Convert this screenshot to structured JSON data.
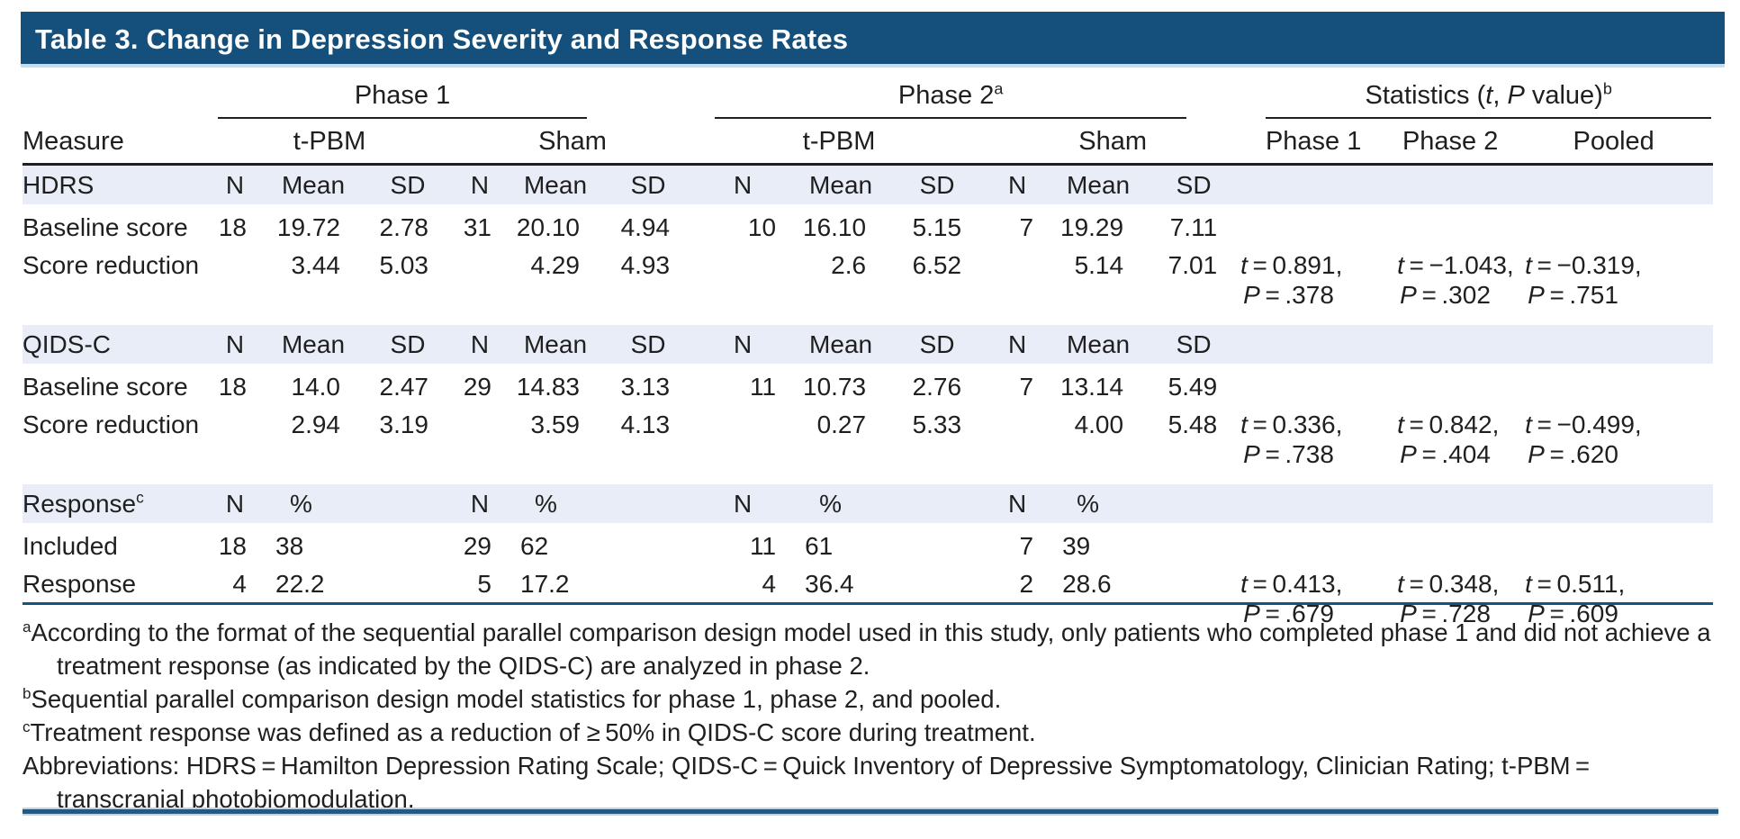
{
  "title": "Table 3. Change in Depression Severity and Response Rates",
  "colors": {
    "title_bar_bg": "#15507C",
    "title_text": "#FFFFFF",
    "band_bg": "#E9EDF8",
    "rule_dark": "#231F20",
    "rule_blue": "#17537F",
    "footer_rule_blue": "#1B5C8B",
    "text": "#1F1F1F"
  },
  "header": {
    "measure_label": "Measure",
    "groups": [
      {
        "parts": [
          {
            "t": "Phase 1"
          }
        ]
      },
      {
        "parts": [
          {
            "t": "Phase 2"
          },
          {
            "t": "a",
            "sup": true
          }
        ]
      },
      {
        "parts": [
          {
            "t": "Statistics ("
          },
          {
            "t": "t",
            "i": true
          },
          {
            "t": ", "
          },
          {
            "t": "P",
            "i": true
          },
          {
            "t": " value)"
          },
          {
            "t": "b",
            "sup": true
          }
        ]
      }
    ],
    "subgroups": [
      "t-PBM",
      "Sham",
      "t-PBM",
      "Sham"
    ],
    "stat_cols": [
      "Phase 1",
      "Phase 2",
      "Pooled"
    ]
  },
  "sections": [
    {
      "label_parts": [
        {
          "t": "HDRS"
        }
      ],
      "band_cols": [
        "N",
        "Mean",
        "SD",
        "N",
        "Mean",
        "SD",
        "N",
        "Mean",
        "SD",
        "N",
        "Mean",
        "SD"
      ],
      "pct": false,
      "rows": [
        {
          "label": "Baseline score",
          "cells": [
            "18",
            "19.72",
            "2.78",
            "31",
            "20.10",
            "4.94",
            "10",
            "16.10",
            "5.15",
            "7",
            "19.29",
            "7.11"
          ],
          "stats": [
            null,
            null,
            null
          ]
        },
        {
          "label": "Score reduction",
          "cells": [
            "",
            "3.44",
            "5.03",
            "",
            "4.29",
            "4.93",
            "",
            "2.6",
            "6.52",
            "",
            "5.14",
            "7.01"
          ],
          "stats": [
            {
              "t_line": "t = 0.891,",
              "p_line": "P = .378"
            },
            {
              "t_line": "t = −1.043,",
              "p_line": "P = .302"
            },
            {
              "t_line": "t = −0.319,",
              "p_line": "P = .751"
            }
          ]
        }
      ]
    },
    {
      "label_parts": [
        {
          "t": "QIDS-C"
        }
      ],
      "band_cols": [
        "N",
        "Mean",
        "SD",
        "N",
        "Mean",
        "SD",
        "N",
        "Mean",
        "SD",
        "N",
        "Mean",
        "SD"
      ],
      "pct": false,
      "rows": [
        {
          "label": "Baseline score",
          "cells": [
            "18",
            "14.0",
            "2.47",
            "29",
            "14.83",
            "3.13",
            "11",
            "10.73",
            "2.76",
            "7",
            "13.14",
            "5.49"
          ],
          "stats": [
            null,
            null,
            null
          ]
        },
        {
          "label": "Score reduction",
          "cells": [
            "",
            "2.94",
            "3.19",
            "",
            "3.59",
            "4.13",
            "",
            "0.27",
            "5.33",
            "",
            "4.00",
            "5.48"
          ],
          "stats": [
            {
              "t_line": "t = 0.336,",
              "p_line": "P = .738"
            },
            {
              "t_line": "t = 0.842,",
              "p_line": "P = .404"
            },
            {
              "t_line": "t = −0.499,",
              "p_line": "P = .620"
            }
          ]
        }
      ]
    },
    {
      "label_parts": [
        {
          "t": "Response"
        },
        {
          "t": "c",
          "sup": true
        }
      ],
      "band_cols": [
        "N",
        "%",
        "",
        "N",
        "%",
        "",
        "N",
        "%",
        "",
        "N",
        "%",
        ""
      ],
      "pct": true,
      "rows": [
        {
          "label": "Included",
          "cells": [
            "18",
            "38",
            "",
            "29",
            "62",
            "",
            "11",
            "61",
            "",
            "7",
            "39",
            ""
          ],
          "stats": [
            null,
            null,
            null
          ]
        },
        {
          "label": "Response",
          "cells": [
            "4",
            "22.2",
            "",
            "5",
            "17.2",
            "",
            "4",
            "36.4",
            "",
            "2",
            "28.6",
            ""
          ],
          "stats": [
            {
              "t_line": "t = 0.413,",
              "p_line": "P = .679"
            },
            {
              "t_line": "t = 0.348,",
              "p_line": "P = .728"
            },
            {
              "t_line": "t = 0.511,",
              "p_line": "P = .609"
            }
          ]
        }
      ]
    }
  ],
  "footnotes": [
    {
      "sup": "a",
      "text": "According to the format of the sequential parallel comparison design model used in this study, only patients who completed phase 1 and did not achieve a treatment response (as indicated by the QIDS-C) are analyzed in phase 2."
    },
    {
      "sup": "b",
      "text": "Sequential parallel comparison design model statistics for phase 1, phase 2, and pooled."
    },
    {
      "sup": "c",
      "text": "Treatment response was defined as a reduction of ≥ 50% in QIDS-C score during treatment."
    },
    {
      "sup": "",
      "text": "Abbreviations: HDRS = Hamilton Depression Rating Scale; QIDS-C = Quick Inventory of Depressive Symptomatology, Clinician Rating; t-PBM = transcranial photobiomodulation."
    }
  ]
}
